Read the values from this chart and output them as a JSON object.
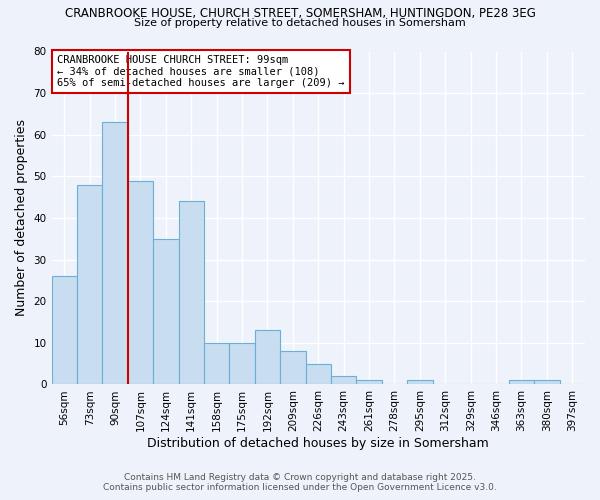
{
  "title_line1": "CRANBROOKE HOUSE, CHURCH STREET, SOMERSHAM, HUNTINGDON, PE28 3EG",
  "title_line2": "Size of property relative to detached houses in Somersham",
  "xlabel": "Distribution of detached houses by size in Somersham",
  "ylabel": "Number of detached properties",
  "bar_labels": [
    "56sqm",
    "73sqm",
    "90sqm",
    "107sqm",
    "124sqm",
    "141sqm",
    "158sqm",
    "175sqm",
    "192sqm",
    "209sqm",
    "226sqm",
    "243sqm",
    "261sqm",
    "278sqm",
    "295sqm",
    "312sqm",
    "329sqm",
    "346sqm",
    "363sqm",
    "380sqm",
    "397sqm"
  ],
  "bar_values": [
    26,
    48,
    63,
    49,
    35,
    44,
    10,
    10,
    13,
    8,
    5,
    2,
    1,
    0,
    1,
    0,
    0,
    0,
    1,
    1,
    0
  ],
  "bar_color": "#c8ddf0",
  "bar_edge_color": "#6baed6",
  "vline_x_index": 2.5,
  "marker_label_line1": "CRANBROOKE HOUSE CHURCH STREET: 99sqm",
  "marker_label_line2": "← 34% of detached houses are smaller (108)",
  "marker_label_line3": "65% of semi-detached houses are larger (209) →",
  "vline_color": "#cc0000",
  "annotation_box_edge": "#cc0000",
  "ylim": [
    0,
    80
  ],
  "yticks": [
    0,
    10,
    20,
    30,
    40,
    50,
    60,
    70,
    80
  ],
  "footer_line1": "Contains HM Land Registry data © Crown copyright and database right 2025.",
  "footer_line2": "Contains public sector information licensed under the Open Government Licence v3.0.",
  "background_color": "#eef2fa",
  "grid_color": "#ffffff",
  "title1_fontsize": 8.5,
  "title2_fontsize": 8.0,
  "xlabel_fontsize": 9,
  "ylabel_fontsize": 9,
  "tick_fontsize": 7.5,
  "annotation_fontsize": 7.5,
  "footer_fontsize": 6.5
}
